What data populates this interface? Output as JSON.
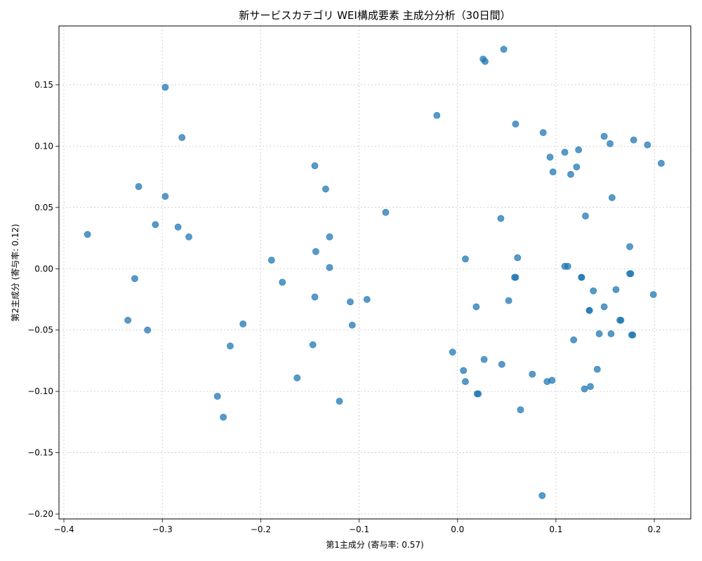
{
  "chart_data": {
    "type": "scatter",
    "title": "新サービスカテゴリ WEI構成要素 主成分分析（30日間）",
    "xlabel": "第1主成分 (寄与率: 0.57)",
    "ylabel": "第2主成分 (寄与率: 0.12)",
    "xlim": [
      -0.405,
      0.237
    ],
    "ylim": [
      -0.204,
      0.198
    ],
    "xticks": [
      -0.4,
      -0.3,
      -0.2,
      -0.1,
      0.0,
      0.1,
      0.2
    ],
    "xtick_labels": [
      "−0.4",
      "−0.3",
      "−0.2",
      "−0.1",
      "0.0",
      "0.1",
      "0.2"
    ],
    "yticks": [
      -0.2,
      -0.15,
      -0.1,
      -0.05,
      0.0,
      0.05,
      0.1,
      0.15
    ],
    "ytick_labels": [
      "−0.20",
      "−0.15",
      "−0.10",
      "−0.05",
      "0.00",
      "0.05",
      "0.10",
      "0.15"
    ],
    "grid": true,
    "color": "#1f77b4",
    "points": [
      {
        "x": -0.376,
        "y": 0.028
      },
      {
        "x": -0.335,
        "y": -0.042
      },
      {
        "x": -0.328,
        "y": -0.008
      },
      {
        "x": -0.324,
        "y": 0.067
      },
      {
        "x": -0.315,
        "y": -0.05
      },
      {
        "x": -0.307,
        "y": 0.036
      },
      {
        "x": -0.297,
        "y": 0.148
      },
      {
        "x": -0.297,
        "y": 0.059
      },
      {
        "x": -0.284,
        "y": 0.034
      },
      {
        "x": -0.28,
        "y": 0.107
      },
      {
        "x": -0.273,
        "y": 0.026
      },
      {
        "x": -0.244,
        "y": -0.104
      },
      {
        "x": -0.238,
        "y": -0.121
      },
      {
        "x": -0.231,
        "y": -0.063
      },
      {
        "x": -0.218,
        "y": -0.045
      },
      {
        "x": -0.189,
        "y": 0.007
      },
      {
        "x": -0.178,
        "y": -0.011
      },
      {
        "x": -0.163,
        "y": -0.089
      },
      {
        "x": -0.147,
        "y": -0.062
      },
      {
        "x": -0.145,
        "y": 0.084
      },
      {
        "x": -0.145,
        "y": -0.023
      },
      {
        "x": -0.144,
        "y": 0.014
      },
      {
        "x": -0.134,
        "y": 0.065
      },
      {
        "x": -0.13,
        "y": 0.026
      },
      {
        "x": -0.13,
        "y": 0.001
      },
      {
        "x": -0.12,
        "y": -0.108
      },
      {
        "x": -0.109,
        "y": -0.027
      },
      {
        "x": -0.107,
        "y": -0.046
      },
      {
        "x": -0.092,
        "y": -0.025
      },
      {
        "x": -0.073,
        "y": 0.046
      },
      {
        "x": -0.021,
        "y": 0.125
      },
      {
        "x": -0.005,
        "y": -0.068
      },
      {
        "x": 0.006,
        "y": -0.083
      },
      {
        "x": 0.008,
        "y": 0.008
      },
      {
        "x": 0.008,
        "y": -0.092
      },
      {
        "x": 0.019,
        "y": -0.031
      },
      {
        "x": 0.02,
        "y": -0.102
      },
      {
        "x": 0.021,
        "y": -0.102
      },
      {
        "x": 0.026,
        "y": 0.171
      },
      {
        "x": 0.027,
        "y": -0.074
      },
      {
        "x": 0.028,
        "y": 0.169
      },
      {
        "x": 0.044,
        "y": 0.041
      },
      {
        "x": 0.045,
        "y": -0.078
      },
      {
        "x": 0.047,
        "y": 0.179
      },
      {
        "x": 0.052,
        "y": -0.026
      },
      {
        "x": 0.058,
        "y": -0.007
      },
      {
        "x": 0.059,
        "y": 0.118
      },
      {
        "x": 0.059,
        "y": -0.007
      },
      {
        "x": 0.061,
        "y": 0.009
      },
      {
        "x": 0.064,
        "y": -0.115
      },
      {
        "x": 0.076,
        "y": -0.086
      },
      {
        "x": 0.086,
        "y": -0.185
      },
      {
        "x": 0.087,
        "y": 0.111
      },
      {
        "x": 0.091,
        "y": -0.092
      },
      {
        "x": 0.094,
        "y": 0.091
      },
      {
        "x": 0.096,
        "y": -0.091
      },
      {
        "x": 0.097,
        "y": 0.079
      },
      {
        "x": 0.109,
        "y": 0.095
      },
      {
        "x": 0.109,
        "y": 0.002
      },
      {
        "x": 0.112,
        "y": 0.002
      },
      {
        "x": 0.115,
        "y": 0.077
      },
      {
        "x": 0.118,
        "y": -0.058
      },
      {
        "x": 0.121,
        "y": 0.083
      },
      {
        "x": 0.123,
        "y": 0.097
      },
      {
        "x": 0.126,
        "y": -0.007
      },
      {
        "x": 0.126,
        "y": -0.007
      },
      {
        "x": 0.129,
        "y": -0.098
      },
      {
        "x": 0.13,
        "y": 0.043
      },
      {
        "x": 0.134,
        "y": -0.034
      },
      {
        "x": 0.134,
        "y": -0.034
      },
      {
        "x": 0.135,
        "y": -0.096
      },
      {
        "x": 0.138,
        "y": -0.018
      },
      {
        "x": 0.142,
        "y": -0.082
      },
      {
        "x": 0.144,
        "y": -0.053
      },
      {
        "x": 0.149,
        "y": 0.108
      },
      {
        "x": 0.149,
        "y": -0.031
      },
      {
        "x": 0.155,
        "y": 0.102
      },
      {
        "x": 0.156,
        "y": -0.053
      },
      {
        "x": 0.157,
        "y": 0.058
      },
      {
        "x": 0.161,
        "y": -0.017
      },
      {
        "x": 0.165,
        "y": -0.042
      },
      {
        "x": 0.166,
        "y": -0.042
      },
      {
        "x": 0.175,
        "y": 0.018
      },
      {
        "x": 0.175,
        "y": -0.004
      },
      {
        "x": 0.176,
        "y": -0.004
      },
      {
        "x": 0.177,
        "y": -0.054
      },
      {
        "x": 0.178,
        "y": -0.054
      },
      {
        "x": 0.179,
        "y": 0.105
      },
      {
        "x": 0.193,
        "y": 0.101
      },
      {
        "x": 0.199,
        "y": -0.021
      },
      {
        "x": 0.207,
        "y": 0.086
      }
    ]
  }
}
